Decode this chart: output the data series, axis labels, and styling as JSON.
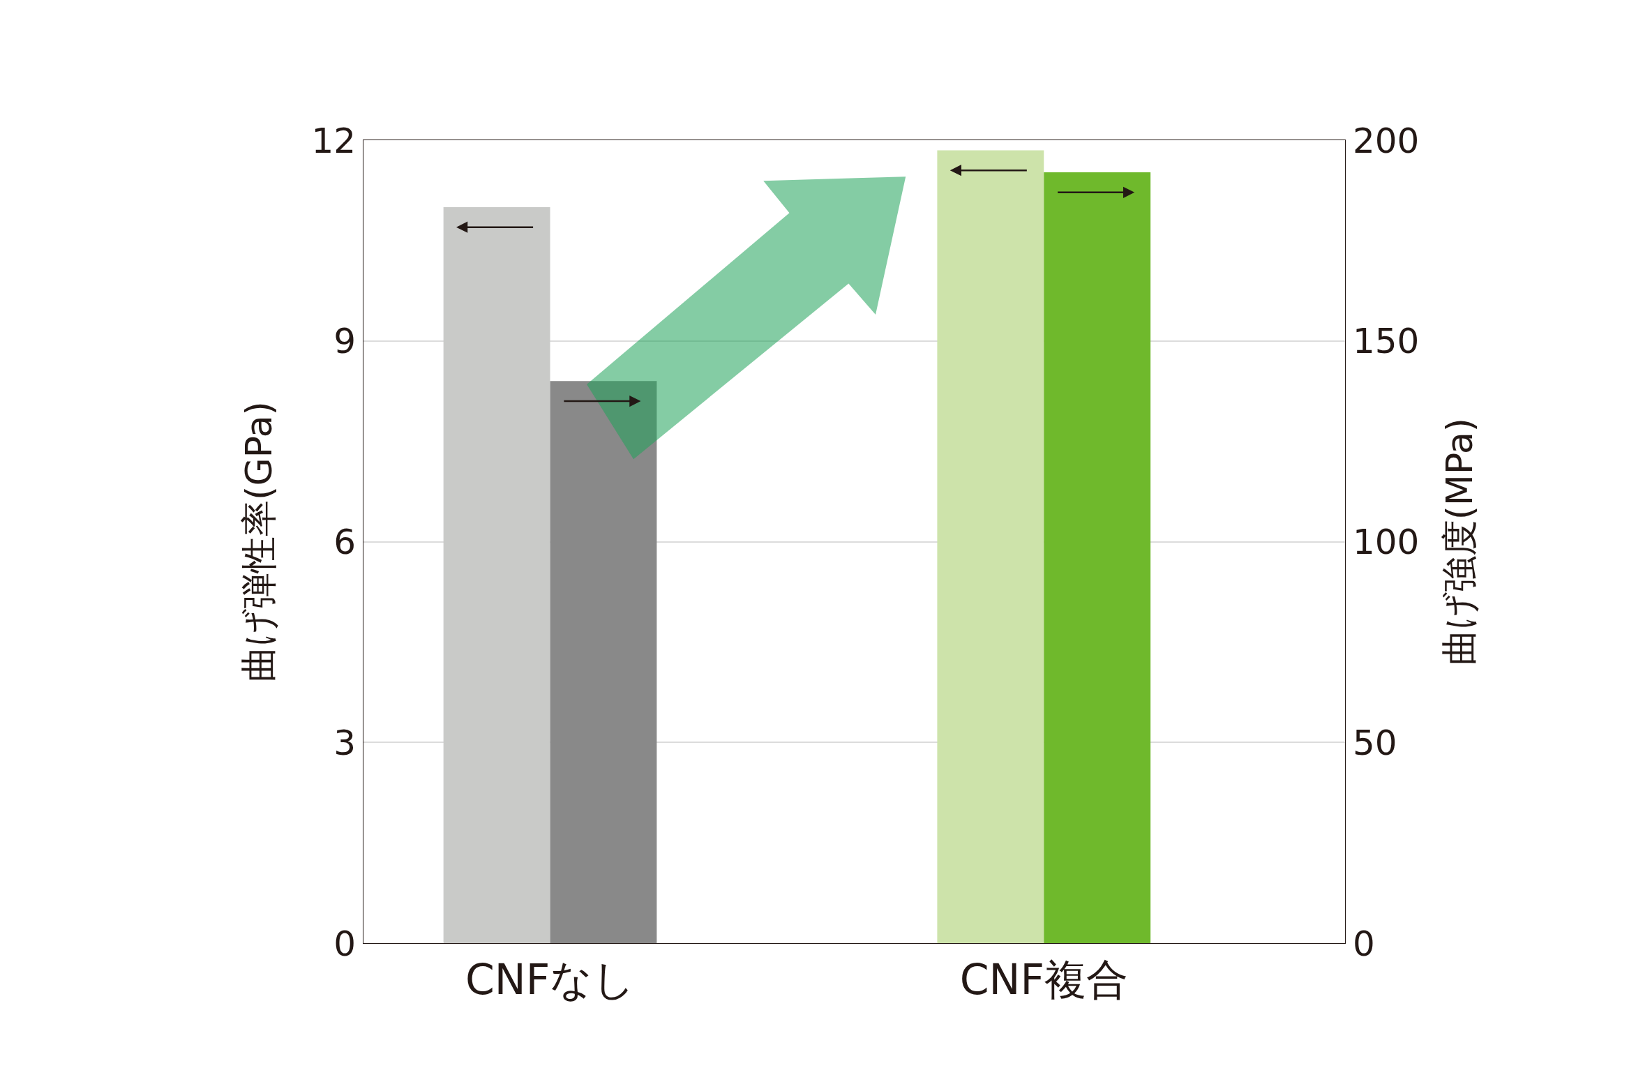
{
  "chart_data": {
    "type": "bar",
    "categories": [
      "CNFなし",
      "CNF複合"
    ],
    "ylabel": "曲げ弾性率(GPa)",
    "y2label": "曲げ強度(MPa)",
    "series": [
      {
        "axis": "y",
        "colors": [
          "#c9cac8",
          "#cde3aa"
        ],
        "values": [
          11.0,
          11.85
        ]
      },
      {
        "axis": "y2",
        "colors": [
          "#898989",
          "#6fb92c"
        ],
        "values": [
          140,
          192
        ]
      }
    ],
    "ylim": [
      0,
      12
    ],
    "yticks": [
      0,
      3,
      6,
      9,
      12
    ],
    "y2lim": [
      0,
      200
    ],
    "y2ticks": [
      0,
      50,
      100,
      150,
      200
    ],
    "grid": "y"
  }
}
